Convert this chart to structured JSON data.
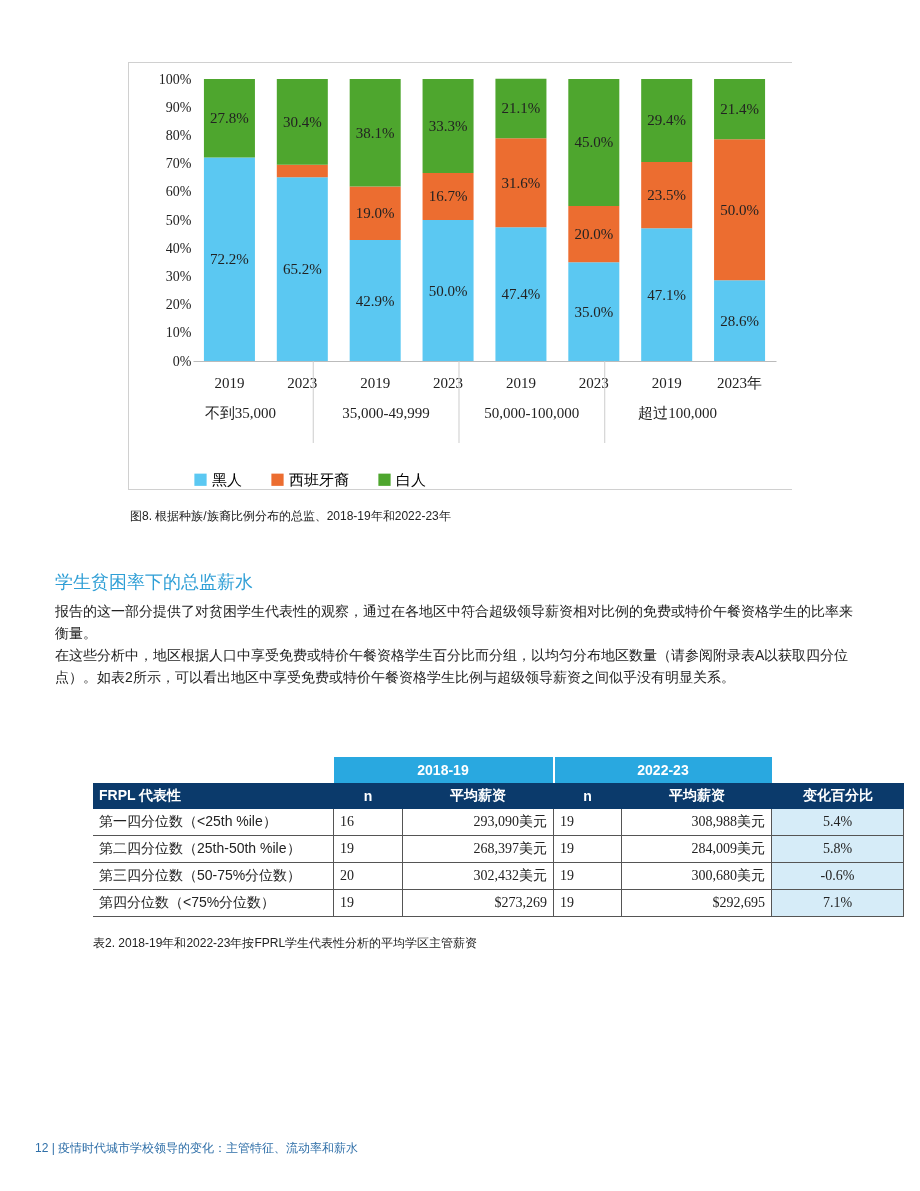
{
  "chart_data": {
    "type": "bar",
    "stacked": true,
    "categories": [
      "2019",
      "2023",
      "2019",
      "2023",
      "2019",
      "2023",
      "2019",
      "2023年"
    ],
    "series": [
      {
        "name": "黑人",
        "color": "#5bc8f2",
        "values": [
          72.2,
          65.2,
          42.9,
          50.0,
          47.4,
          35.0,
          47.1,
          28.6
        ],
        "value_labels": [
          "72.2%",
          "65.2%",
          "42.9%",
          "50.0%",
          "47.4%",
          "35.0%",
          "47.1%",
          "28.6%"
        ]
      },
      {
        "name": "西班牙裔",
        "color": "#ec6d30",
        "values": [
          0,
          4.4,
          19.0,
          16.7,
          31.6,
          20.0,
          23.5,
          50.0
        ],
        "value_labels": [
          null,
          null,
          "19.0%",
          "16.7%",
          "31.6%",
          "20.0%",
          "23.5%",
          "50.0%"
        ]
      },
      {
        "name": "白人",
        "color": "#4ea62e",
        "values": [
          27.8,
          30.4,
          38.1,
          33.3,
          21.1,
          45.0,
          29.4,
          21.4
        ],
        "value_labels": [
          "27.8%",
          "30.4%",
          "38.1%",
          "33.3%",
          "21.1%",
          "45.0%",
          "29.4%",
          "21.4%"
        ]
      }
    ],
    "ylim": [
      0,
      100
    ],
    "yticks": [
      {
        "value": 0,
        "label": "0%"
      },
      {
        "value": 10,
        "label": "10%"
      },
      {
        "value": 20,
        "label": "20%"
      },
      {
        "value": 30,
        "label": "30%"
      },
      {
        "value": 40,
        "label": "40%"
      },
      {
        "value": 50,
        "label": "50%"
      },
      {
        "value": 60,
        "label": "60%"
      },
      {
        "value": 70,
        "label": "70%"
      },
      {
        "value": 80,
        "label": "80%"
      },
      {
        "value": 90,
        "label": "90%"
      },
      {
        "value": 100,
        "label": "100%"
      }
    ],
    "legend": "bottom",
    "annotations": [
      "不到35,000",
      "35,000-49,999",
      "50,000-100,000",
      "超过100,000",
      "图8. 根据种族/族裔比例分布的总监、2018-19年和2022-23年",
      "学生贫困率下的总监薪水",
      "报告的这一部分提供了对贫困学生代表性的观察，通过在各地区中符合超级领导薪资相对比例的免费或特价午餐资格学生的比率来衡量。",
      "在这些分析中，地区根据人口中享受免费或特价午餐资格学生百分比而分组，以均匀分布地区数量（请参阅附录表A以获取四分位点）。如表2所示，可以看出地区中享受免费或特价午餐资格学生比例与超级领导薪资之间似乎没有明显关系。",
      "2018-19",
      "2022-23",
      "FRPL 代表性",
      "n",
      "平均薪资",
      "n",
      "平均薪资",
      "变化百分比",
      "第一四分位数（<25th %ile）",
      "16",
      "293,090美元",
      "19",
      "308,988美元",
      "5.4%",
      "第二四分位数（25th-50th %ile）",
      "19",
      "268,397美元",
      "19",
      "284,009美元",
      "5.8%",
      "第三四分位数（50-75%分位数）",
      "20",
      "302,432美元",
      "19",
      "300,680美元",
      "-0.6%",
      "第四分位数（<75%分位数）",
      "19",
      "$273,269",
      "19",
      "$292,695",
      "7.1%",
      "表2. 2018-19年和2022-23年按FPRL学生代表性分析的平均学区主管薪资",
      "12 | 疫情时代城市学校领导的变化：主管特征、流动率和薪水"
    ]
  }
}
